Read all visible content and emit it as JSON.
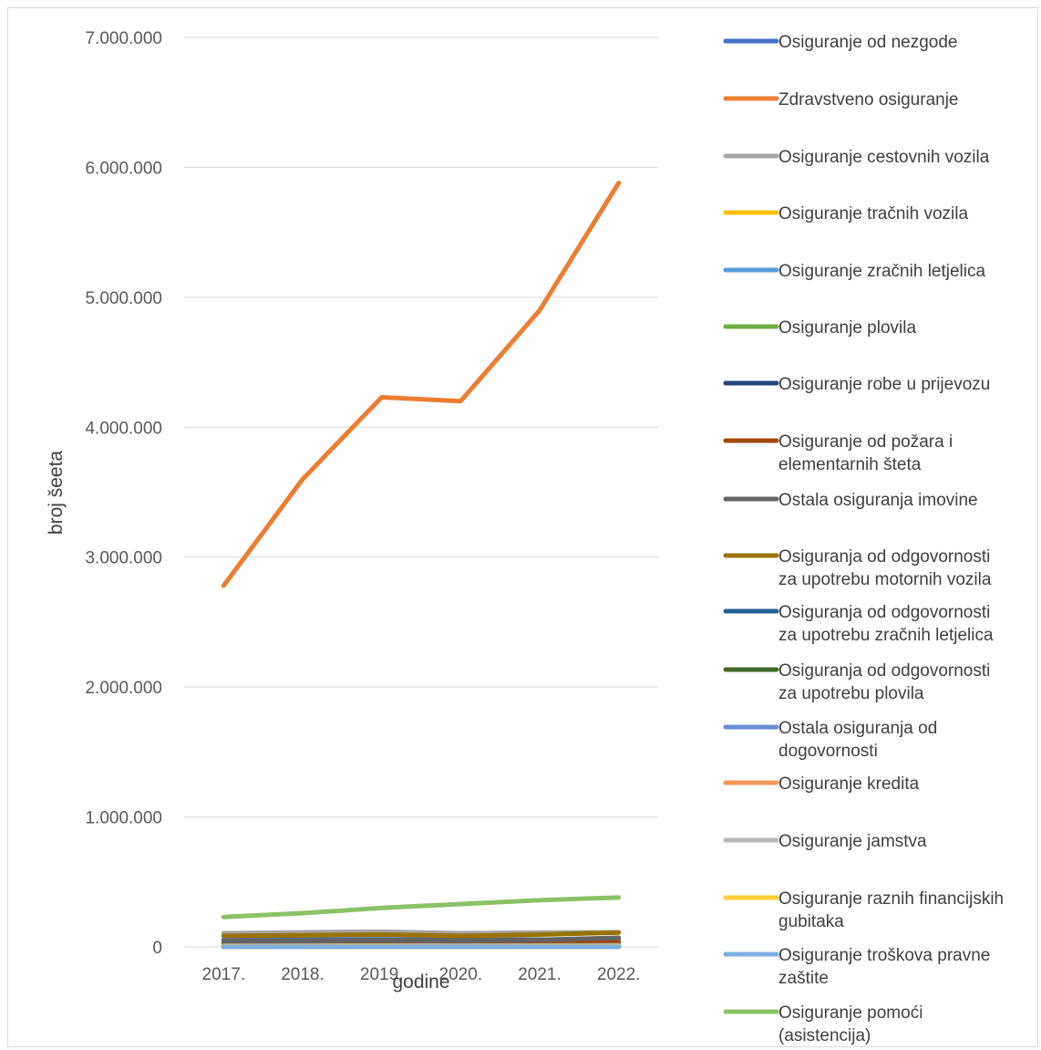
{
  "chart_data": {
    "type": "line",
    "xlabel": "godine",
    "ylabel": "broj šeeta",
    "ylim": [
      0,
      7000000
    ],
    "y_ticks": [
      "0",
      "1.000.000",
      "2.000.000",
      "3.000.000",
      "4.000.000",
      "5.000.000",
      "6.000.000",
      "7.000.000"
    ],
    "y_tick_values": [
      0,
      1000000,
      2000000,
      3000000,
      4000000,
      5000000,
      6000000,
      7000000
    ],
    "categories": [
      "2017.",
      "2018.",
      "2019.",
      "2020.",
      "2021.",
      "2022."
    ],
    "grid": true,
    "legend_position": "right",
    "series": [
      {
        "name": "Osiguranje od nezgode",
        "color": "#4472C4",
        "values": [
          55000,
          57000,
          58000,
          54000,
          56000,
          58000
        ]
      },
      {
        "name": "Zdravstveno osiguranje",
        "color": "#ED7D31",
        "values": [
          2780000,
          3600000,
          4230000,
          4200000,
          4900000,
          5880000
        ]
      },
      {
        "name": "Osiguranje cestovnih vozila",
        "color": "#A5A5A5",
        "values": [
          105000,
          112000,
          118000,
          105000,
          110000,
          112000
        ]
      },
      {
        "name": "Osiguranje tračnih vozila",
        "color": "#FFC000",
        "values": [
          0,
          0,
          0,
          0,
          0,
          0
        ]
      },
      {
        "name": "Osiguranje zračnih letjelica",
        "color": "#5B9BD5",
        "values": [
          0,
          0,
          0,
          0,
          0,
          0
        ]
      },
      {
        "name": "Osiguranje plovila",
        "color": "#70AD47",
        "values": [
          3000,
          3000,
          3000,
          3000,
          3000,
          3000
        ]
      },
      {
        "name": "Osiguranje robe u prijevozu",
        "color": "#264478",
        "values": [
          5000,
          5000,
          5000,
          5000,
          5000,
          5000
        ]
      },
      {
        "name": "Osiguranje od požara i elementarnih šteta",
        "color": "#9E480E",
        "values": [
          30000,
          32000,
          33000,
          30000,
          32000,
          35000
        ]
      },
      {
        "name": "Ostala osiguranja imovine",
        "color": "#636363",
        "values": [
          45000,
          48000,
          52000,
          50000,
          55000,
          70000
        ]
      },
      {
        "name": "Osiguranja od odgovornosti za upotrebu motornih vozila",
        "color": "#997300",
        "values": [
          85000,
          90000,
          95000,
          85000,
          95000,
          110000
        ]
      },
      {
        "name": "Osiguranja od odgovornosti za upotrebu zračnih letjelica",
        "color": "#255E91",
        "values": [
          0,
          0,
          0,
          0,
          0,
          0
        ]
      },
      {
        "name": "Osiguranja od odgovornosti za upotrebu plovila",
        "color": "#43682B",
        "values": [
          1000,
          1000,
          1000,
          1000,
          1000,
          1000
        ]
      },
      {
        "name": "Ostala osiguranja od dogovornosti",
        "color": "#698ED0",
        "values": [
          10000,
          11000,
          12000,
          11000,
          12000,
          13000
        ]
      },
      {
        "name": "Osiguranje kredita",
        "color": "#F1975A",
        "values": [
          3000,
          3000,
          3000,
          3000,
          3000,
          3000
        ]
      },
      {
        "name": "Osiguranje jamstva",
        "color": "#B7B7B7",
        "values": [
          1000,
          1000,
          1000,
          1000,
          1000,
          1000
        ]
      },
      {
        "name": "Osiguranje raznih financijskih gubitaka",
        "color": "#FFCD33",
        "values": [
          6000,
          6000,
          7000,
          6000,
          7000,
          7000
        ]
      },
      {
        "name": "Osiguranje troškova pravne zaštite",
        "color": "#7CAFDD",
        "values": [
          500,
          500,
          500,
          500,
          500,
          500
        ]
      },
      {
        "name": "Osiguranje pomoći (asistencija)",
        "color": "#8CC168",
        "values": [
          230000,
          260000,
          300000,
          330000,
          360000,
          380000
        ]
      }
    ]
  }
}
